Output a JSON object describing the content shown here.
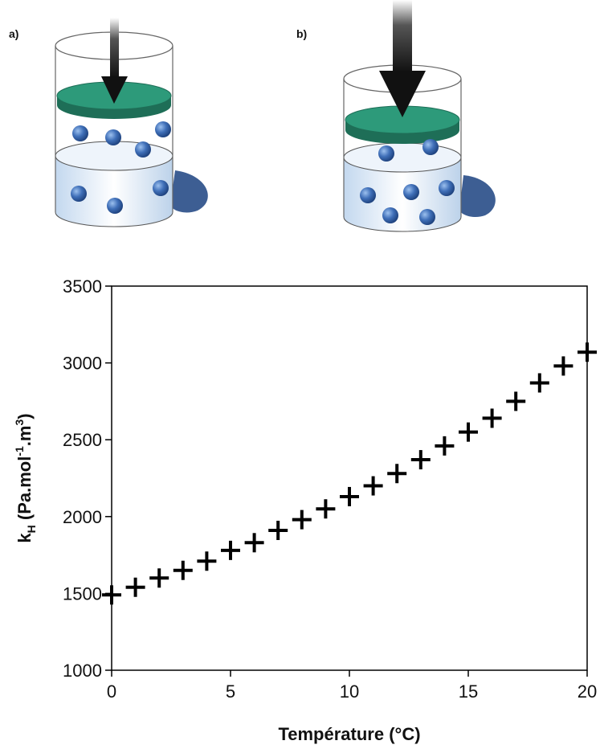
{
  "panels": [
    {
      "label": "a)"
    },
    {
      "label": "b)"
    }
  ],
  "colors": {
    "piston": "#2d9a7a",
    "piston_dark": "#1e6e57",
    "liquid": "#d6e6f5",
    "molecule": "#3f6fb8",
    "shadow": "#3d5e93",
    "arrow": "#1a1a1a",
    "marker": "#000000"
  },
  "chart_data": {
    "type": "scatter",
    "marker": "plus",
    "xlabel": "Température (°C)",
    "ylabel": {
      "main": "k",
      "sub": "H",
      "unit_a": " (Pa.mol",
      "sup1": "-1",
      "unit_b": ".m",
      "sup2": "3",
      "unit_c": ")"
    },
    "xlim": [
      0,
      20
    ],
    "ylim": [
      1000,
      3500
    ],
    "xticks": [
      0,
      5,
      10,
      15,
      20
    ],
    "yticks": [
      1000,
      1500,
      2000,
      2500,
      3000,
      3500
    ],
    "grid": false,
    "x": [
      0,
      1,
      2,
      3,
      4,
      5,
      6,
      7,
      8,
      9,
      10,
      11,
      12,
      13,
      14,
      15,
      16,
      17,
      18,
      19,
      20
    ],
    "y": [
      1490,
      1540,
      1600,
      1650,
      1710,
      1780,
      1830,
      1910,
      1980,
      2050,
      2130,
      2200,
      2280,
      2370,
      2460,
      2550,
      2640,
      2750,
      2870,
      2980,
      3070
    ]
  }
}
